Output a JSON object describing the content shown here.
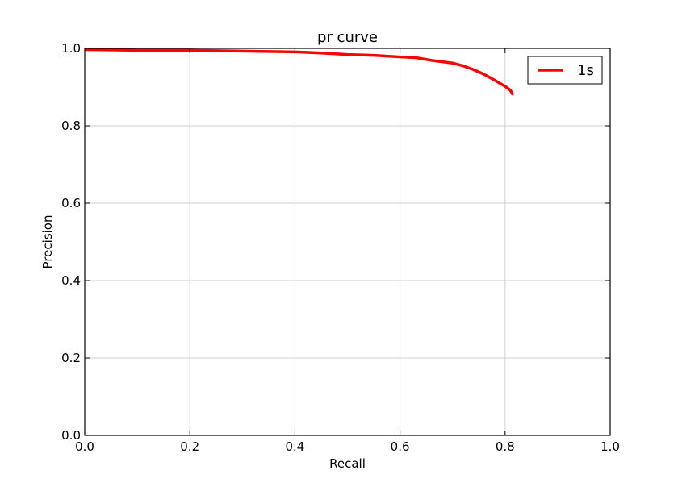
{
  "chart_data": {
    "type": "line",
    "title": "pr curve",
    "xlabel": "Recall",
    "ylabel": "Precision",
    "xlim": [
      0.0,
      1.0
    ],
    "ylim": [
      0.0,
      1.0
    ],
    "xticks": [
      "0.0",
      "0.2",
      "0.4",
      "0.6",
      "0.8",
      "1.0"
    ],
    "yticks": [
      "0.0",
      "0.2",
      "0.4",
      "0.6",
      "0.8",
      "1.0"
    ],
    "grid": true,
    "legend_position": "top-right",
    "series": [
      {
        "name": "1s",
        "color": "#ff0000",
        "x": [
          0.0,
          0.1,
          0.2,
          0.3,
          0.4,
          0.45,
          0.5,
          0.55,
          0.6,
          0.63,
          0.66,
          0.7,
          0.72,
          0.74,
          0.76,
          0.78,
          0.79,
          0.8,
          0.81,
          0.815
        ],
        "y": [
          0.997,
          0.995,
          0.995,
          0.993,
          0.991,
          0.988,
          0.984,
          0.982,
          0.978,
          0.976,
          0.969,
          0.962,
          0.955,
          0.945,
          0.933,
          0.918,
          0.91,
          0.902,
          0.892,
          0.88
        ]
      }
    ]
  }
}
